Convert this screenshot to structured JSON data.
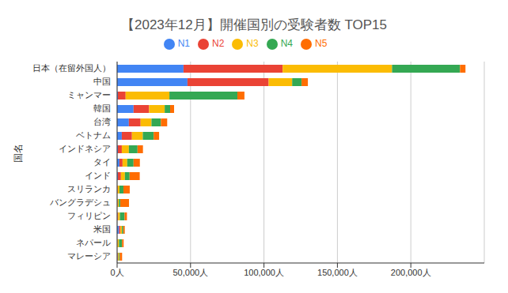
{
  "chart_data": {
    "type": "bar",
    "orientation": "horizontal",
    "stacked": true,
    "grid": true,
    "legend": "top",
    "title": "【2023年12月】開催国別の受験者数 TOP15",
    "y_label": "国名",
    "categories": [
      "日本（在留外国人）",
      "中国",
      "ミャンマー",
      "韓国",
      "台湾",
      "ベトナム",
      "インドネシア",
      "タイ",
      "インド",
      "スリランカ",
      "バングラデシュ",
      "フィリピン",
      "米国",
      "ネパール",
      "マレーシア"
    ],
    "series": [
      {
        "name": "N1",
        "color": "#4285f4",
        "values": [
          45200,
          47900,
          500,
          11200,
          8000,
          3200,
          500,
          1600,
          500,
          100,
          100,
          200,
          1300,
          50,
          300
        ]
      },
      {
        "name": "N2",
        "color": "#ea4335",
        "values": [
          67500,
          55300,
          5300,
          10600,
          8000,
          6900,
          2700,
          2100,
          2100,
          300,
          300,
          500,
          1000,
          200,
          300
        ]
      },
      {
        "name": "N3",
        "color": "#fbbc04",
        "values": [
          74500,
          16000,
          29800,
          10600,
          7400,
          7400,
          4800,
          3200,
          2700,
          1200,
          800,
          1200,
          1000,
          1000,
          600
        ]
      },
      {
        "name": "N4",
        "color": "#34a853",
        "values": [
          46300,
          6400,
          46300,
          3700,
          6400,
          7400,
          5900,
          4300,
          3200,
          2700,
          1000,
          3200,
          900,
          2100,
          600
        ]
      },
      {
        "name": "N5",
        "color": "#ff6d01",
        "values": [
          3700,
          4300,
          4800,
          2700,
          4300,
          3700,
          3700,
          4300,
          6900,
          4300,
          5900,
          1600,
          1000,
          1100,
          1600
        ]
      }
    ],
    "xlim": [
      0,
      250000
    ],
    "xticks": [
      {
        "value": 0,
        "label": "0人"
      },
      {
        "value": 50000,
        "label": "50,000人"
      },
      {
        "value": 100000,
        "label": "100,000人"
      },
      {
        "value": 150000,
        "label": "150,000人"
      },
      {
        "value": 200000,
        "label": "200,000人"
      }
    ]
  }
}
